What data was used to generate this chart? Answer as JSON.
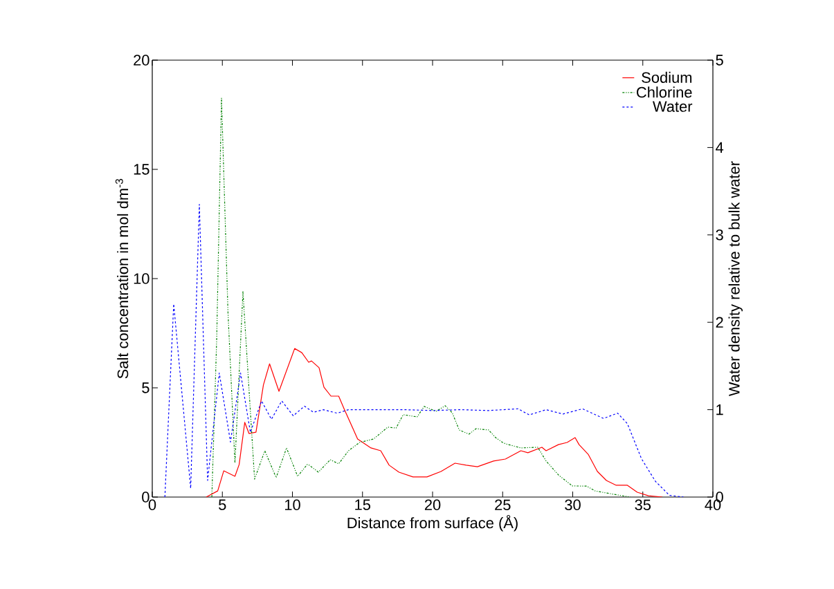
{
  "chart_data": {
    "type": "line",
    "xlabel": "Distance from surface (Å)",
    "ylabel": "Salt concentration in mol dm$^{-3}$",
    "y2label": "Water density relative to bulk water",
    "xlim": [
      0,
      40
    ],
    "xticks": [
      0,
      5,
      10,
      15,
      20,
      25,
      30,
      35,
      40
    ],
    "ylim": [
      0,
      20
    ],
    "yticks": [
      0,
      5,
      10,
      15,
      20
    ],
    "y2lim": [
      0,
      5
    ],
    "y2ticks": [
      0,
      1,
      2,
      3,
      4,
      5
    ],
    "legend": "top right",
    "grid": false,
    "series": [
      {
        "name": "Sodium",
        "color": "#ff0000",
        "line_style": "solid",
        "x": [
          3.85,
          4.67,
          5.1,
          5.9,
          6.2,
          6.6,
          6.9,
          7.4,
          7.93,
          8.37,
          9.04,
          10.16,
          10.67,
          11.16,
          11.36,
          11.9,
          12.25,
          12.75,
          13.3,
          13.7,
          14.65,
          15.6,
          16.3,
          16.9,
          17.6,
          18.6,
          19.6,
          20.6,
          21.6,
          22.4,
          23.2,
          24.35,
          25.2,
          26.3,
          26.8,
          27.8,
          28.1,
          28.98,
          29.6,
          30.17,
          30.45,
          31.1,
          31.76,
          32.4,
          33.1,
          33.9,
          34.6,
          35.4,
          36.4
        ],
        "values": [
          0,
          0.28,
          1.2,
          0.95,
          1.49,
          3.42,
          2.91,
          2.97,
          5.13,
          6.1,
          4.84,
          6.8,
          6.61,
          6.17,
          6.23,
          5.92,
          5.03,
          4.62,
          4.62,
          4.02,
          2.66,
          2.25,
          2.12,
          1.46,
          1.14,
          0.92,
          0.92,
          1.17,
          1.55,
          1.46,
          1.39,
          1.65,
          1.74,
          2.12,
          2.03,
          2.28,
          2.12,
          2.4,
          2.5,
          2.72,
          2.4,
          1.96,
          1.17,
          0.76,
          0.54,
          0.54,
          0.22,
          0.06,
          0
        ]
      },
      {
        "name": "Chlorine",
        "color": "#008000",
        "line_style": "dotted",
        "x": [
          4.25,
          4.6,
          4.94,
          5.4,
          5.9,
          6.47,
          7.3,
          8.03,
          8.84,
          9.58,
          10.37,
          11.06,
          11.2,
          11.85,
          12.7,
          13.3,
          14.0,
          14.8,
          15.8,
          16.8,
          17.4,
          17.9,
          18.9,
          19.4,
          20.25,
          20.9,
          21.4,
          21.9,
          22.6,
          23.1,
          24.0,
          24.5,
          25.0,
          25.2,
          26.3,
          27.5,
          28.1,
          29.0,
          29.97,
          31.0,
          31.6,
          32.9,
          34.1
        ],
        "values": [
          0,
          7.3,
          18.26,
          8.5,
          1.55,
          9.4,
          0.82,
          2.12,
          0.89,
          2.25,
          0.95,
          1.49,
          1.46,
          1.14,
          1.71,
          1.52,
          2.12,
          2.5,
          2.66,
          3.2,
          3.16,
          3.77,
          3.67,
          4.15,
          3.92,
          4.18,
          3.86,
          3.07,
          2.88,
          3.13,
          3.07,
          2.72,
          2.5,
          2.44,
          2.25,
          2.28,
          1.65,
          1.0,
          0.51,
          0.5,
          0.28,
          0.13,
          0
        ]
      },
      {
        "name": "Water",
        "color": "#0000ff",
        "line_style": "dashed",
        "axis": "y2",
        "x": [
          0.9,
          1.53,
          2.74,
          3.36,
          3.95,
          4.78,
          5.58,
          6.3,
          7.0,
          7.8,
          8.5,
          9.24,
          10.06,
          10.86,
          11.5,
          12.2,
          13.2,
          14.0,
          16.0,
          18.0,
          20.0,
          22.0,
          24.0,
          26.1,
          26.9,
          28.1,
          29.3,
          30.7,
          32.2,
          33.2,
          33.9,
          34.9,
          35.9,
          36.9,
          37.9
        ],
        "values": [
          0,
          2.21,
          0.1,
          3.35,
          0.19,
          1.42,
          0.63,
          1.42,
          0.74,
          1.1,
          0.89,
          1.1,
          0.93,
          1.04,
          0.97,
          1.0,
          0.96,
          1.0,
          1.0,
          1.0,
          0.99,
          1.0,
          0.99,
          1.01,
          0.94,
          1.0,
          0.95,
          1.01,
          0.9,
          0.96,
          0.84,
          0.44,
          0.18,
          0.02,
          0
        ]
      }
    ]
  }
}
